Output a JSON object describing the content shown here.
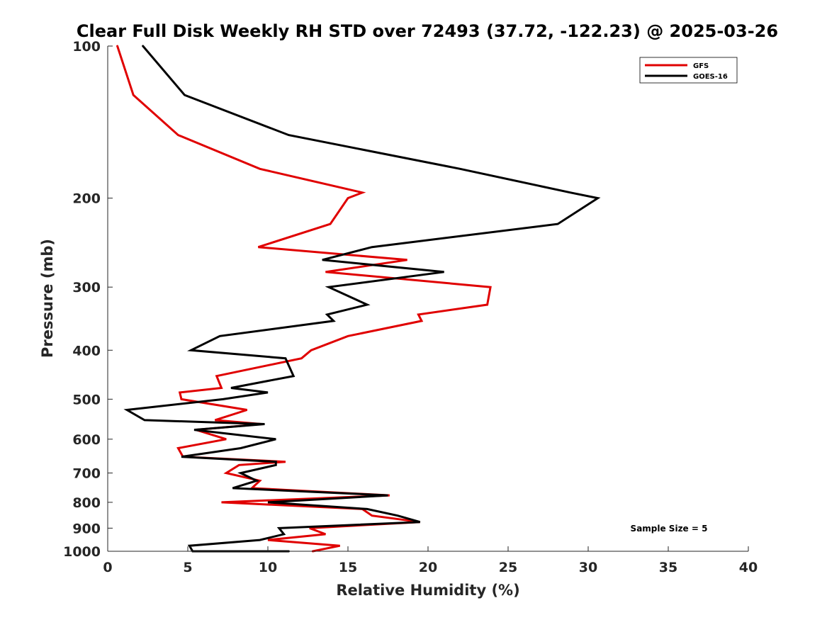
{
  "chart_data": {
    "type": "line",
    "title": "Clear Full Disk Weekly RH STD over 72493 (37.72, -122.23) @ 2025-03-26",
    "xlabel": "Relative Humidity (%)",
    "ylabel": "Pressure (mb)",
    "xlim": [
      0,
      40
    ],
    "ylim": [
      100,
      1000
    ],
    "yscale": "log",
    "y_reversed": true,
    "xticks": [
      0,
      5,
      10,
      15,
      20,
      25,
      30,
      35,
      40
    ],
    "yticks": [
      100,
      200,
      300,
      400,
      500,
      600,
      700,
      800,
      900,
      1000
    ],
    "grid": false,
    "legend_position": "top-right",
    "annotation": "Sample Size = 5",
    "series": [
      {
        "name": "GFS",
        "color": "#e00000",
        "points": [
          [
            0.6,
            100
          ],
          [
            1.6,
            125
          ],
          [
            4.4,
            150
          ],
          [
            9.5,
            175
          ],
          [
            15.9,
            195
          ],
          [
            15.0,
            200
          ],
          [
            13.9,
            225
          ],
          [
            9.4,
            250
          ],
          [
            18.7,
            265
          ],
          [
            13.6,
            280
          ],
          [
            23.9,
            300
          ],
          [
            23.7,
            325
          ],
          [
            19.4,
            340
          ],
          [
            19.6,
            350
          ],
          [
            15.0,
            375
          ],
          [
            12.7,
            400
          ],
          [
            12.1,
            415
          ],
          [
            6.8,
            450
          ],
          [
            7.1,
            475
          ],
          [
            4.5,
            485
          ],
          [
            4.6,
            500
          ],
          [
            8.7,
            525
          ],
          [
            6.7,
            550
          ],
          [
            9.6,
            560
          ],
          [
            5.5,
            575
          ],
          [
            7.4,
            600
          ],
          [
            4.4,
            625
          ],
          [
            4.7,
            650
          ],
          [
            11.1,
            665
          ],
          [
            8.2,
            675
          ],
          [
            7.4,
            700
          ],
          [
            9.5,
            725
          ],
          [
            9.0,
            750
          ],
          [
            17.6,
            775
          ],
          [
            7.1,
            800
          ],
          [
            15.9,
            825
          ],
          [
            16.5,
            850
          ],
          [
            19.5,
            875
          ],
          [
            12.6,
            900
          ],
          [
            13.6,
            925
          ],
          [
            10.0,
            950
          ],
          [
            14.5,
            975
          ],
          [
            12.8,
            1000
          ]
        ]
      },
      {
        "name": "GOES-16",
        "color": "#000000",
        "points": [
          [
            2.2,
            100
          ],
          [
            4.8,
            125
          ],
          [
            11.3,
            150
          ],
          [
            22.0,
            175
          ],
          [
            28.9,
            195
          ],
          [
            30.6,
            200
          ],
          [
            28.1,
            225
          ],
          [
            16.5,
            250
          ],
          [
            13.4,
            265
          ],
          [
            21.0,
            280
          ],
          [
            13.8,
            300
          ],
          [
            16.2,
            325
          ],
          [
            13.7,
            340
          ],
          [
            14.1,
            350
          ],
          [
            7.0,
            375
          ],
          [
            5.2,
            400
          ],
          [
            11.1,
            415
          ],
          [
            11.6,
            450
          ],
          [
            7.7,
            475
          ],
          [
            10.0,
            485
          ],
          [
            7.2,
            500
          ],
          [
            1.2,
            525
          ],
          [
            2.3,
            550
          ],
          [
            9.8,
            560
          ],
          [
            5.4,
            575
          ],
          [
            10.5,
            600
          ],
          [
            8.3,
            625
          ],
          [
            4.6,
            650
          ],
          [
            10.5,
            665
          ],
          [
            10.5,
            675
          ],
          [
            8.3,
            700
          ],
          [
            9.3,
            725
          ],
          [
            7.8,
            750
          ],
          [
            17.5,
            775
          ],
          [
            10.0,
            800
          ],
          [
            16.2,
            825
          ],
          [
            18.1,
            850
          ],
          [
            19.5,
            875
          ],
          [
            10.7,
            900
          ],
          [
            11.0,
            925
          ],
          [
            9.5,
            950
          ],
          [
            5.1,
            975
          ],
          [
            5.3,
            1000
          ],
          [
            11.3,
            1000
          ]
        ]
      }
    ]
  }
}
